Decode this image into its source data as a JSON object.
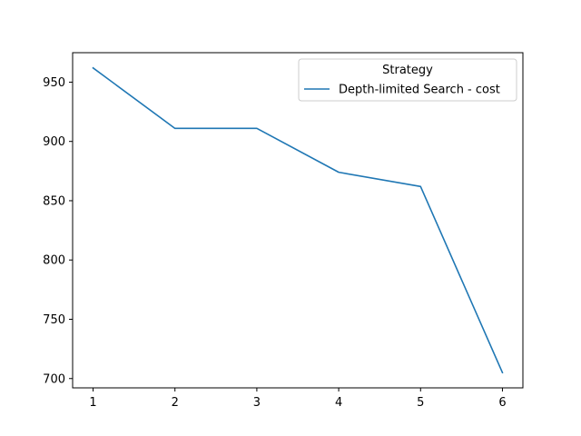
{
  "chart_data": {
    "type": "line",
    "x": [
      1,
      2,
      3,
      4,
      5,
      6
    ],
    "series": [
      {
        "name": "Depth-limited Search - cost",
        "values": [
          962,
          911,
          911,
          874,
          862,
          705
        ],
        "color": "#1f77b4"
      }
    ],
    "xlim": [
      0.75,
      6.25
    ],
    "ylim": [
      692.15,
      974.85
    ],
    "xticks": [
      1,
      2,
      3,
      4,
      5,
      6
    ],
    "xtick_labels": [
      "1",
      "2",
      "3",
      "4",
      "5",
      "6"
    ],
    "yticks": [
      700,
      750,
      800,
      850,
      900,
      950
    ],
    "ytick_labels": [
      "700",
      "750",
      "800",
      "850",
      "900",
      "950"
    ],
    "legend": {
      "title": "Strategy",
      "placement": "top-right"
    },
    "grid": false
  }
}
